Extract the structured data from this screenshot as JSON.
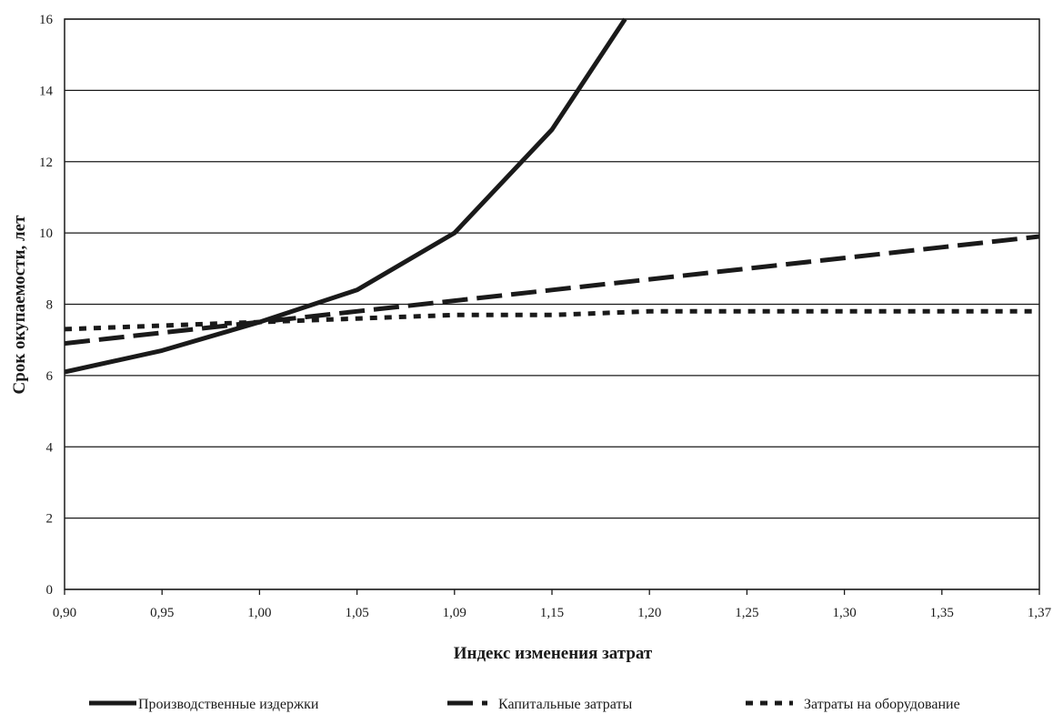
{
  "chart_data": {
    "type": "line",
    "xlabel": "Индекс изменения затрат",
    "ylabel": "Срок окупаемости, лет",
    "x_categories": [
      "0,90",
      "0,95",
      "1,00",
      "1,05",
      "1,09",
      "1,15",
      "1,20",
      "1,25",
      "1,30",
      "1,35",
      "1,37"
    ],
    "ylim": [
      0,
      16
    ],
    "yticks": [
      0,
      2,
      4,
      6,
      8,
      10,
      12,
      14,
      16
    ],
    "grid": "horizontal",
    "legend_position": "bottom",
    "series": [
      {
        "name": "Производственные издержки",
        "style": "solid",
        "points": [
          [
            0,
            6.1
          ],
          [
            1,
            6.7
          ],
          [
            2,
            7.5
          ],
          [
            3,
            8.4
          ],
          [
            4,
            10.0
          ],
          [
            5,
            12.9
          ],
          [
            5.75,
            16.0
          ]
        ]
      },
      {
        "name": "Капитальные затраты",
        "style": "dashed",
        "points": [
          [
            0,
            6.9
          ],
          [
            1,
            7.2
          ],
          [
            2,
            7.5
          ],
          [
            3,
            7.8
          ],
          [
            4,
            8.1
          ],
          [
            5,
            8.4
          ],
          [
            6,
            8.7
          ],
          [
            7,
            9.0
          ],
          [
            8,
            9.3
          ],
          [
            9,
            9.6
          ],
          [
            10,
            9.9
          ]
        ]
      },
      {
        "name": "Затраты на оборудование",
        "style": "dotted",
        "points": [
          [
            0,
            7.3
          ],
          [
            1,
            7.4
          ],
          [
            2,
            7.5
          ],
          [
            3,
            7.6
          ],
          [
            4,
            7.7
          ],
          [
            5,
            7.7
          ],
          [
            6,
            7.8
          ],
          [
            7,
            7.8
          ],
          [
            8,
            7.8
          ],
          [
            9,
            7.8
          ],
          [
            10,
            7.8
          ]
        ]
      }
    ]
  }
}
